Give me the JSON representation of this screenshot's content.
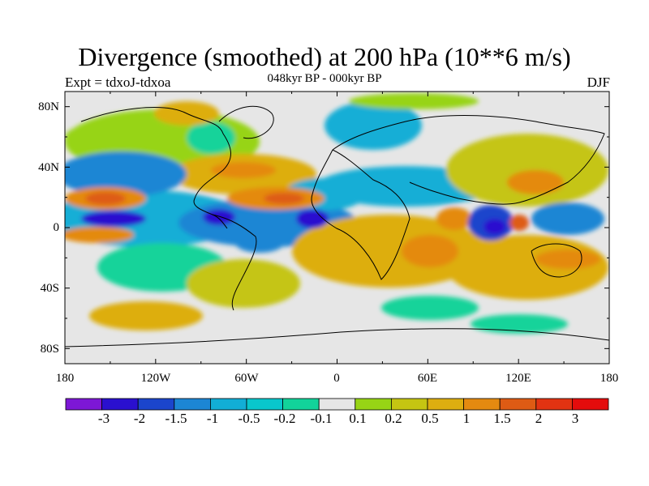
{
  "title": "Divergence (smoothed) at 200 hPa (10**6 m/s)",
  "subtitle": "048kyr BP - 000kyr BP",
  "experiment": "Expt = tdxoJ-tdxoa",
  "season": "DJF",
  "lat_labels": [
    "80N",
    "40N",
    "0",
    "40S",
    "80S"
  ],
  "lon_labels": [
    "180",
    "120W",
    "60W",
    "0",
    "60E",
    "120E",
    "180"
  ],
  "colorbar": {
    "labels": [
      "-3",
      "-2",
      "-1.5",
      "-1",
      "-0.5",
      "-0.2",
      "-0.1",
      "0.1",
      "0.2",
      "0.5",
      "1",
      "1.5",
      "2",
      "3"
    ],
    "colors": [
      "#7d17d6",
      "#2a10cf",
      "#1b45cc",
      "#1c86d4",
      "#12aed6",
      "#09c7cc",
      "#12d39a",
      "#e6e6e6",
      "#97d415",
      "#c5c512",
      "#ddae10",
      "#e48a10",
      "#de5b14",
      "#e23312",
      "#e40c0c"
    ]
  },
  "colors": {
    "background": "#e6e6e6",
    "neg_strong": "#2a10cf",
    "neg_mid": "#1c86d4",
    "neg_weak": "#12d39a",
    "pos_weak": "#97d415",
    "pos_mid": "#ddae10",
    "pos_strong": "#de5b14"
  }
}
